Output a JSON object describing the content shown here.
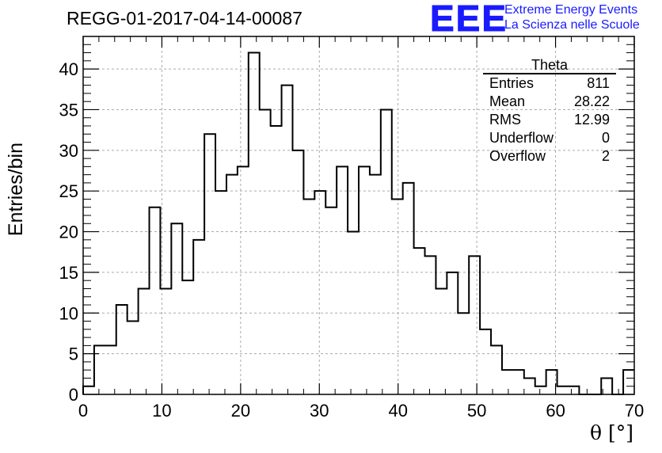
{
  "title": "REGG-01-2017-04-14-00087",
  "logo": {
    "mark": "EEE",
    "line1": "Extreme Energy Events",
    "line2": "La Scienza nelle Scuole",
    "color": "#1a1aff"
  },
  "stats": {
    "name": "Theta",
    "rows": [
      {
        "label": "Entries",
        "value": "811"
      },
      {
        "label": "Mean",
        "value": "28.22"
      },
      {
        "label": "RMS",
        "value": "12.99"
      },
      {
        "label": "Underflow",
        "value": "0"
      },
      {
        "label": "Overflow",
        "value": "2"
      }
    ]
  },
  "chart_data": {
    "type": "bar",
    "style": "step histogram",
    "xlabel": "θ [°]",
    "ylabel": "Entries/bin",
    "xlim": [
      0,
      70
    ],
    "ylim": [
      0,
      44
    ],
    "bin_width": 1.4,
    "xticks": [
      0,
      10,
      20,
      30,
      40,
      50,
      60,
      70
    ],
    "yticks": [
      0,
      5,
      10,
      15,
      20,
      25,
      30,
      35,
      40
    ],
    "grid": true,
    "line_color": "#000000",
    "bin_edges_start": 0,
    "values": [
      1,
      6,
      6,
      11,
      9,
      13,
      23,
      13,
      21,
      14,
      19,
      32,
      25,
      27,
      28,
      42,
      35,
      33,
      38,
      30,
      24,
      25,
      23,
      28,
      20,
      28,
      27,
      35,
      24,
      26,
      18,
      17,
      13,
      15,
      10,
      17,
      8,
      6,
      3,
      3,
      2,
      1,
      3,
      1,
      1,
      0,
      0,
      2,
      0,
      3
    ]
  }
}
